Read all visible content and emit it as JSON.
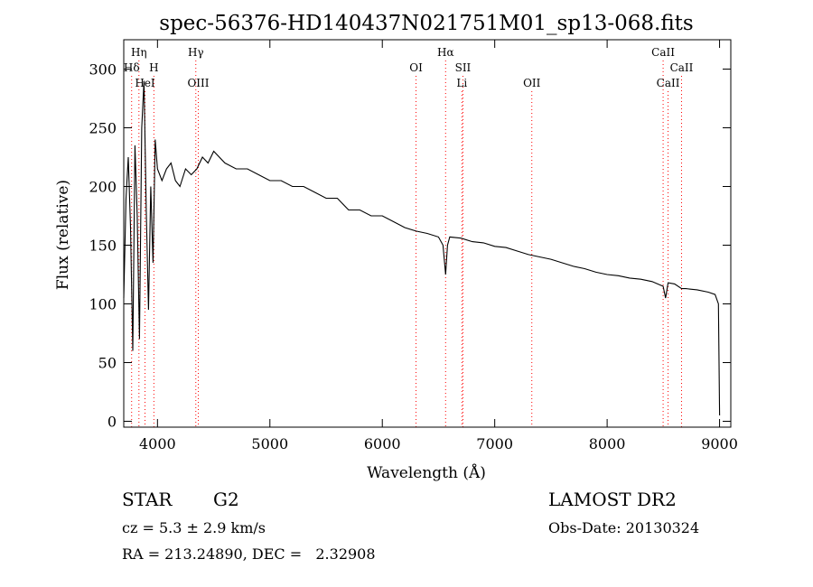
{
  "chart_data": {
    "type": "line",
    "title": "spec-56376-HD140437N021751M01_sp13-068.fits",
    "xlabel": "Wavelength (Å)",
    "ylabel": "Flux (relative)",
    "xlim": [
      3700,
      9100
    ],
    "ylim": [
      -5,
      325
    ],
    "xticks": [
      4000,
      5000,
      6000,
      7000,
      8000,
      9000
    ],
    "yticks": [
      0,
      50,
      100,
      150,
      200,
      250,
      300
    ],
    "x": [
      3700,
      3720,
      3740,
      3760,
      3780,
      3800,
      3820,
      3840,
      3860,
      3880,
      3900,
      3920,
      3940,
      3960,
      3980,
      4000,
      4040,
      4080,
      4120,
      4160,
      4200,
      4250,
      4300,
      4350,
      4400,
      4450,
      4500,
      4600,
      4700,
      4800,
      4900,
      5000,
      5100,
      5200,
      5300,
      5400,
      5500,
      5600,
      5700,
      5800,
      5900,
      6000,
      6100,
      6200,
      6300,
      6400,
      6500,
      6540,
      6563,
      6580,
      6600,
      6700,
      6800,
      6900,
      7000,
      7100,
      7200,
      7300,
      7400,
      7500,
      7600,
      7700,
      7800,
      7900,
      8000,
      8100,
      8200,
      8300,
      8400,
      8498,
      8520,
      8542,
      8600,
      8662,
      8700,
      8800,
      8900,
      8960,
      8990,
      9000
    ],
    "y": [
      105,
      190,
      225,
      165,
      60,
      235,
      175,
      70,
      250,
      290,
      180,
      95,
      200,
      135,
      240,
      215,
      205,
      215,
      220,
      205,
      200,
      215,
      210,
      215,
      225,
      220,
      230,
      220,
      215,
      215,
      210,
      205,
      205,
      200,
      200,
      195,
      190,
      190,
      180,
      180,
      175,
      175,
      170,
      165,
      162,
      160,
      157,
      150,
      125,
      150,
      157,
      156,
      153,
      152,
      149,
      148,
      145,
      142,
      140,
      138,
      135,
      132,
      130,
      127,
      125,
      124,
      122,
      121,
      119,
      115,
      105,
      118,
      117,
      113,
      113,
      112,
      110,
      108,
      100,
      5
    ],
    "spectral_lines": [
      {
        "label": "Hη",
        "wavelength": 3835,
        "row": 0,
        "color": "#ff0000"
      },
      {
        "label": "Hδ",
        "wavelength": 3770,
        "row": 1,
        "color": "#ff0000"
      },
      {
        "label": "H",
        "wavelength": 3968,
        "row": 1,
        "color": "#ff0000"
      },
      {
        "label": "HeI",
        "wavelength": 3889,
        "row": 2,
        "color": "#ff0000"
      },
      {
        "label": "Hγ",
        "wavelength": 4341,
        "row": 0,
        "color": "#ff0000"
      },
      {
        "label": "OIII",
        "wavelength": 4363,
        "row": 2,
        "color": "#ff0000"
      },
      {
        "label": "OI",
        "wavelength": 6300,
        "row": 1,
        "color": "#ff0000"
      },
      {
        "label": "Hα",
        "wavelength": 6563,
        "row": 0,
        "color": "#ff0000"
      },
      {
        "label": "SII",
        "wavelength": 6717,
        "row": 1,
        "color": "#ff0000"
      },
      {
        "label": "Li",
        "wavelength": 6708,
        "row": 2,
        "color": "#ff0000"
      },
      {
        "label": "OII",
        "wavelength": 7330,
        "row": 2,
        "color": "#ff0000"
      },
      {
        "label": "CaII",
        "wavelength": 8498,
        "row": 0,
        "color": "#ff0000"
      },
      {
        "label": "CaII",
        "wavelength": 8662,
        "row": 1,
        "color": "#ff0000"
      },
      {
        "label": "CaII",
        "wavelength": 8542,
        "row": 2,
        "color": "#ff0000"
      }
    ],
    "grid": false,
    "legend": "none"
  },
  "info": {
    "object_type": "STAR",
    "subclass": "G2",
    "survey": "LAMOST DR2",
    "cz": "cz = 5.3 ± 2.9 km/s",
    "obs_date": "Obs-Date: 20130324",
    "coords": "RA = 213.24890, DEC =   2.32908"
  }
}
